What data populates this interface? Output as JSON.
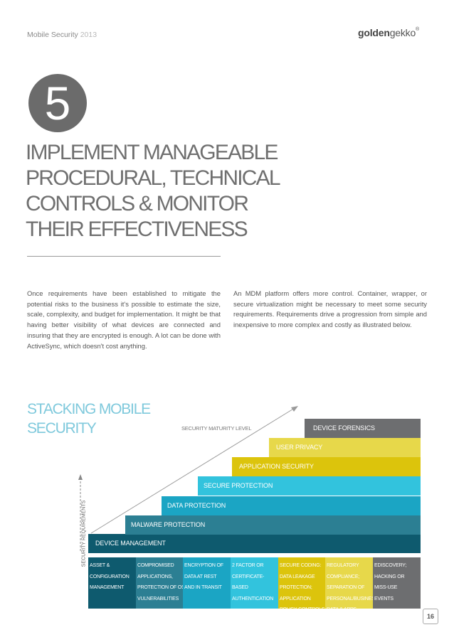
{
  "header": {
    "publication": "Mobile Security",
    "year": "2013",
    "logo_bold": "golden",
    "logo_light": "gekko",
    "logo_mark": "®"
  },
  "section": {
    "number": "5",
    "heading_lines": [
      "IMPLEMENT MANAGEABLE",
      "PROCEDURAL, TECHNICAL",
      "CONTROLS & MONITOR",
      "THEIR EFFECTIVENESS"
    ]
  },
  "body": {
    "left": "Once requirements have been established to mitigate the potential risks to the business it's possible to estimate the size, scale, complexity, and budget for implementation. It might be that having better visibility of what devices are connected and insuring that they are encrypted is enough. A lot can be done with ActiveSync, which doesn't cost anything.",
    "right": "An MDM platform offers more control. Container, wrapper, or secure virtualization might be necessary to meet some security requirements. Requirements drive a progression from simple and inexpensive to more complex and costly as illustrated below."
  },
  "stack": {
    "title_lines": [
      "STACKING MOBILE",
      "SECURITY"
    ],
    "maturity_label": "SECURITY MATURITY LEVEL",
    "requirements_label": "SECURITY REQUIREMENTS",
    "layers": [
      {
        "label": "DEVICE MANAGEMENT",
        "color": "#0e5a6e"
      },
      {
        "label": "MALWARE PROTECTION",
        "color": "#2c7f93"
      },
      {
        "label": "DATA PROTECTION",
        "color": "#1ba5c4"
      },
      {
        "label": "SECURE PROTECTION",
        "color": "#32c3dd"
      },
      {
        "label": "APPLICATION SECURITY",
        "color": "#dcc40c"
      },
      {
        "label": "USER PRIVACY",
        "color": "#e7d84a"
      },
      {
        "label": "DEVICE FORENSICS",
        "color": "#6d6e70"
      }
    ],
    "requirements": [
      {
        "lines": [
          "ASSET &",
          "CONFIGURATION",
          "MANAGEMENT"
        ],
        "color": "#0e5a6e"
      },
      {
        "lines": [
          "COMPROMISED",
          "APPLICATIONS,",
          "PROTECTION OF OS",
          "VULNERABILITIES"
        ],
        "color": "#2c7f93"
      },
      {
        "lines": [
          "ENCRYPTION OF",
          "DATA AT REST",
          "AND IN TRANSIT"
        ],
        "color": "#1ba5c4"
      },
      {
        "lines": [
          "2 FACTOR OR",
          "CERTIFICATE-",
          "BASED",
          "AUTHENTICATION"
        ],
        "color": "#32c3dd"
      },
      {
        "lines": [
          "SECURE CODING:",
          "DATA LEAKAGE",
          "PROTECTION;",
          "APPLICATION",
          "POLICY CONTROLS"
        ],
        "color": "#dcc40c"
      },
      {
        "lines": [
          "REGULATORY",
          "COMPLIANCE;",
          "SEPARATION OF",
          "PERSONAL/BUSINESS",
          "DATA & APPS"
        ],
        "color": "#e7d84a"
      },
      {
        "lines": [
          "eDISCOVERY;",
          "HACKING OR",
          "MISS-USE",
          "EVENTS"
        ],
        "color": "#6d6e70"
      }
    ]
  },
  "page_number": "16"
}
